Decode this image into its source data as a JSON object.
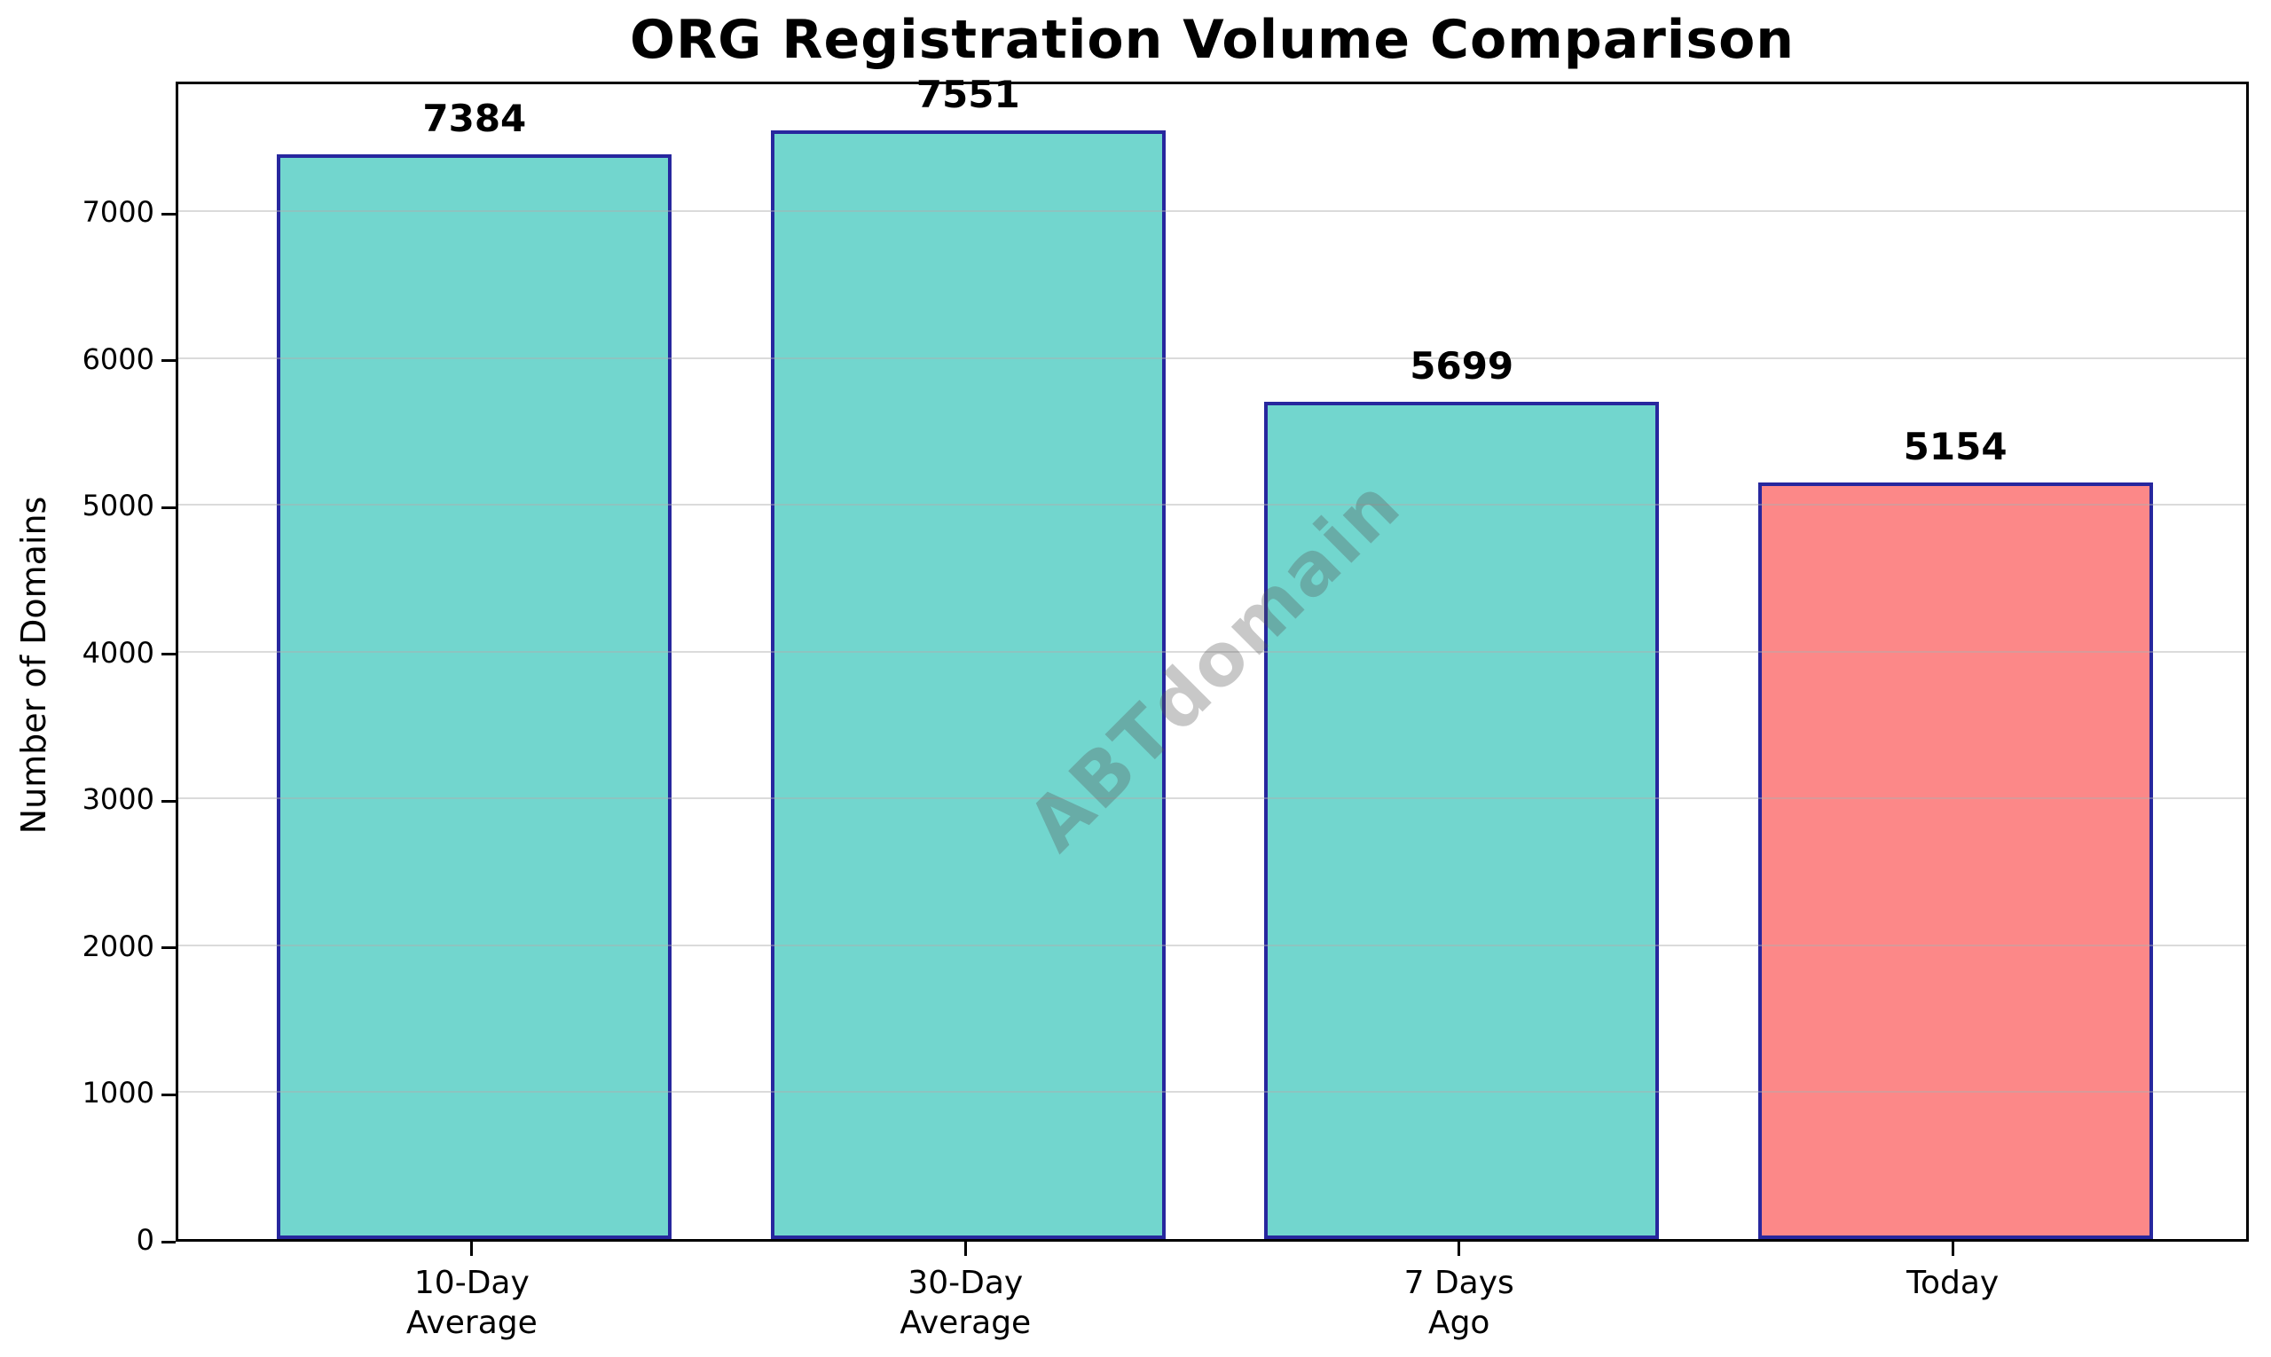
{
  "chart_data": {
    "type": "bar",
    "title": "ORG Registration Volume Comparison",
    "xlabel": "",
    "ylabel": "Number of Domains",
    "categories": [
      "10-Day\nAverage",
      "30-Day\nAverage",
      "7 Days\nAgo",
      "Today"
    ],
    "values": [
      7384,
      7551,
      5699,
      5154
    ],
    "bar_colors": [
      "#72D6CE",
      "#72D6CE",
      "#72D6CE",
      "#FC8888"
    ],
    "bar_edge_color": "#27279E",
    "ylim": [
      0,
      7900
    ],
    "yticks": [
      0,
      1000,
      2000,
      3000,
      4000,
      5000,
      6000,
      7000
    ],
    "grid": "horizontal-overlaid",
    "legend": "none",
    "watermark": "ABTdomain",
    "background_color": "#FFFFFF",
    "frame_color": "#000000"
  }
}
